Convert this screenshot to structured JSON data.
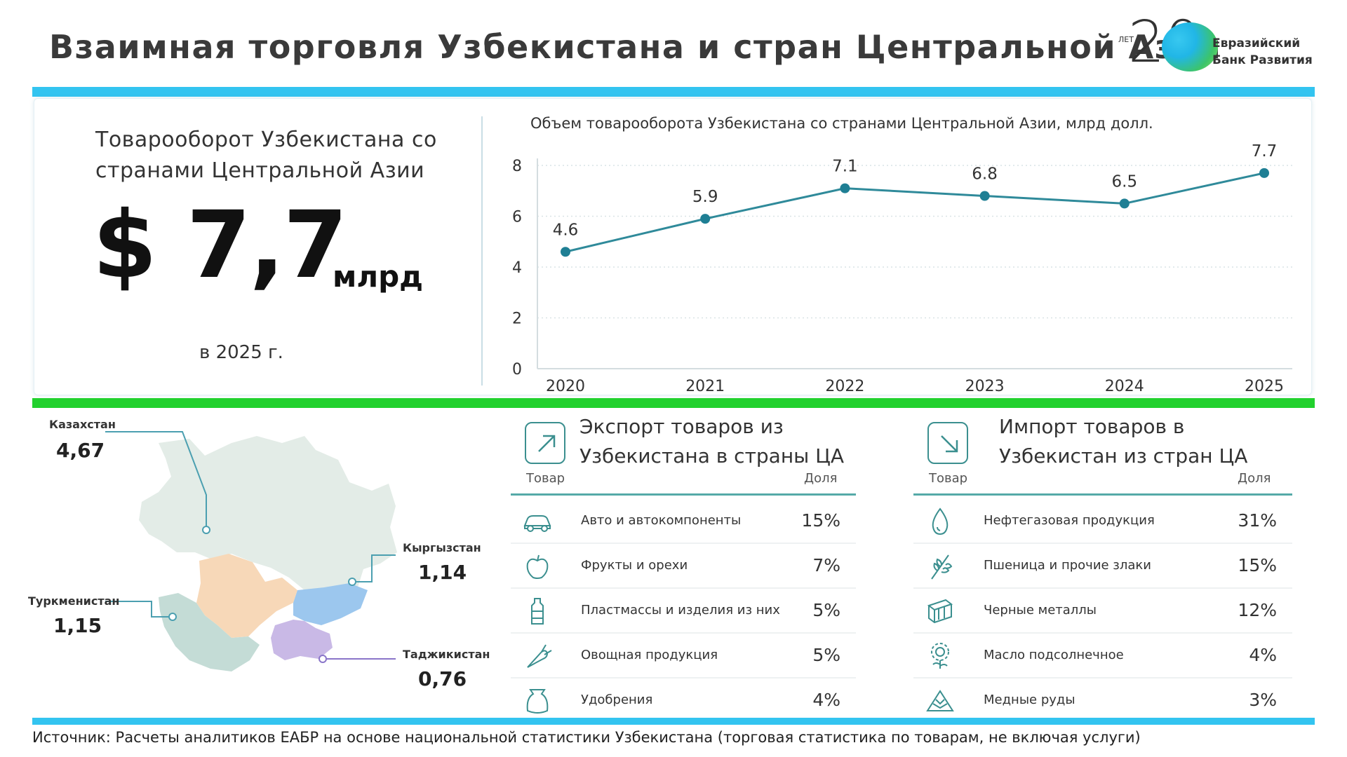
{
  "title": "Взаимная торговля Узбекистана и стран Центральной Азии",
  "logo": {
    "years_label": "ЛЕТ",
    "years_number": "20",
    "line1": "Евразийский",
    "line2": "Банк Развития"
  },
  "kpi": {
    "label": "Товарооборот Узбекистана со странами Центральной Азии",
    "value": "$ 7,7",
    "unit": "млрд",
    "year_label": "в 2025 г."
  },
  "chart_data": {
    "type": "line",
    "title": "Объем товарооборота Узбекистана со странами Центральной Азии, млрд долл.",
    "categories": [
      "2020",
      "2021",
      "2022",
      "2023",
      "2024",
      "2025"
    ],
    "series": [
      {
        "values": [
          4.6,
          5.9,
          7.1,
          6.8,
          6.5,
          7.7
        ]
      }
    ],
    "data_labels": [
      "4.6",
      "5.9",
      "7.1",
      "6.8",
      "6.5",
      "7.7"
    ],
    "ylim": [
      0,
      8
    ],
    "yticks": [
      "0",
      "2",
      "4",
      "6",
      "8"
    ],
    "grid": true,
    "colors": {
      "line": "#2f8a9a",
      "point": "#1f7f94",
      "grid": "#d9e3e6"
    }
  },
  "map": {
    "countries": [
      {
        "name": "Казахстан",
        "value": "4,67"
      },
      {
        "name": "Кыргызстан",
        "value": "1,14"
      },
      {
        "name": "Туркменистан",
        "value": "1,15"
      },
      {
        "name": "Таджикистан",
        "value": "0,76"
      }
    ],
    "colors": {
      "kazakhstan": "#e3ece7",
      "uzbekistan": "#f7d8b8",
      "kyrgyzstan": "#9cc7ee",
      "turkmenistan": "#c4dcd6",
      "tajikistan": "#c9b9e6",
      "leader": "#4b9fb0"
    }
  },
  "export": {
    "title": "Экспорт товаров из Узбекистана в страны ЦА",
    "icon": "arrow-up-right-icon",
    "col_product": "Товар",
    "col_share": "Доля",
    "rows": [
      {
        "icon": "car-icon",
        "label": "Авто и автокомпоненты",
        "share": "15%"
      },
      {
        "icon": "apple-icon",
        "label": "Фрукты и орехи",
        "share": "7%"
      },
      {
        "icon": "bottle-icon",
        "label": "Пластмассы и изделия из них",
        "share": "5%"
      },
      {
        "icon": "carrot-icon",
        "label": "Овощная продукция",
        "share": "5%"
      },
      {
        "icon": "sack-icon",
        "label": "Удобрения",
        "share": "4%"
      }
    ]
  },
  "import": {
    "title": "Импорт товаров в Узбекистан из стран ЦА",
    "icon": "arrow-down-right-icon",
    "col_product": "Товар",
    "col_share": "Доля",
    "rows": [
      {
        "icon": "oil-drop-icon",
        "label": "Нефтегазовая продукция",
        "share": "31%"
      },
      {
        "icon": "wheat-icon",
        "label": "Пшеница и прочие злаки",
        "share": "15%"
      },
      {
        "icon": "metal-beam-icon",
        "label": "Черные металлы",
        "share": "12%"
      },
      {
        "icon": "sunflower-icon",
        "label": "Масло подсолнечное",
        "share": "4%"
      },
      {
        "icon": "ore-icon",
        "label": "Медные руды",
        "share": "3%"
      }
    ]
  },
  "source": "Источник: Расчеты аналитиков ЕАБР на основе национальной статистики Узбекистана (торговая статистика по товарам, не включая услуги)"
}
